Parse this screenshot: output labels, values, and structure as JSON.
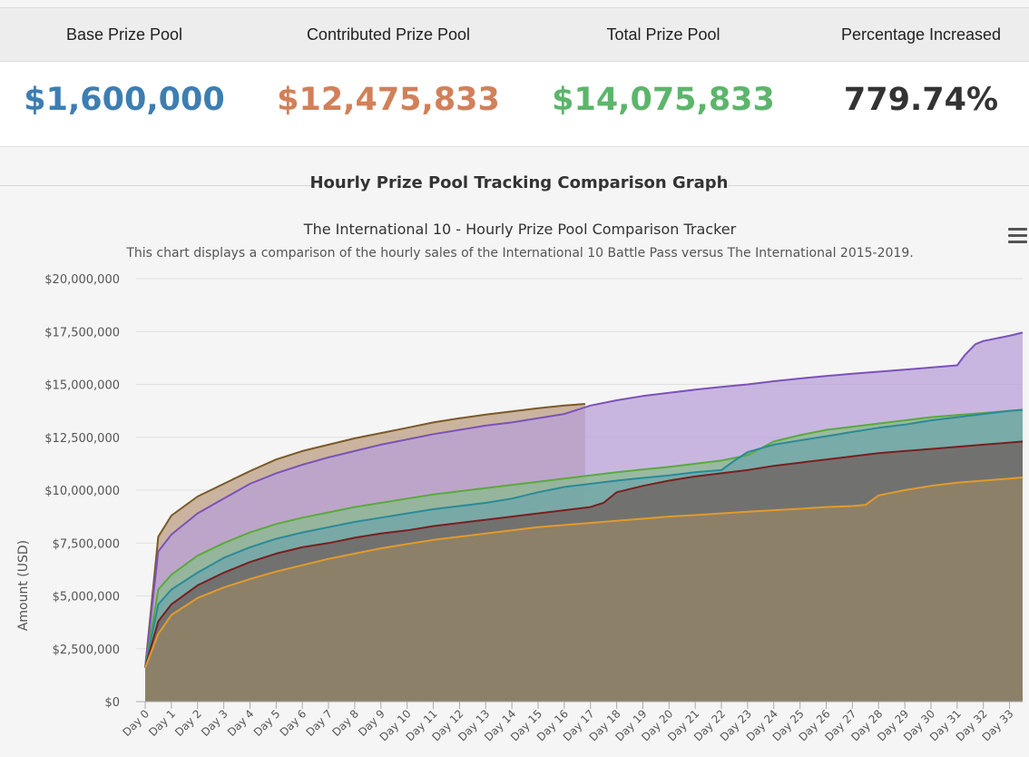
{
  "stats": {
    "labels": [
      "Base Prize Pool",
      "Contributed Prize Pool",
      "Total Prize Pool",
      "Percentage Increased"
    ],
    "values": [
      "$1,600,000",
      "$12,475,833",
      "$14,075,833",
      "779.74%"
    ],
    "colors": [
      "#3d7eb2",
      "#d1805a",
      "#5db56c",
      "#333333"
    ]
  },
  "section": {
    "title": "Hourly Prize Pool Tracking Comparison Graph"
  },
  "menu": {
    "icon": "hamburger-menu-icon"
  },
  "chart_data": {
    "type": "area",
    "title": "The International 10 - Hourly Prize Pool Comparison Tracker",
    "subtitle": "This chart displays a comparison of the hourly sales of the International 10 Battle Pass versus The International 2015-2019.",
    "xlabel": "",
    "ylabel": "Amount (USD)",
    "ylim": [
      0,
      20000000
    ],
    "yticks": [
      0,
      2500000,
      5000000,
      7500000,
      10000000,
      12500000,
      15000000,
      17500000,
      20000000
    ],
    "ytick_labels": [
      "$0",
      "$2,500,000",
      "$5,000,000",
      "$7,500,000",
      "$10,000,000",
      "$12,500,000",
      "$15,000,000",
      "$17,500,000",
      "$20,000,000"
    ],
    "xlim": [
      0,
      33.5
    ],
    "categories": [
      "Day 0",
      "Day 1",
      "Day 2",
      "Day 3",
      "Day 4",
      "Day 5",
      "Day 6",
      "Day 7",
      "Day 8",
      "Day 9",
      "Day 10",
      "Day 11",
      "Day 12",
      "Day 13",
      "Day 14",
      "Day 15",
      "Day 16",
      "Day 17",
      "Day 18",
      "Day 19",
      "Day 20",
      "Day 21",
      "Day 22",
      "Day 23",
      "Day 24",
      "Day 25",
      "Day 26",
      "Day 27",
      "Day 28",
      "Day 29",
      "Day 30",
      "Day 31",
      "Day 32",
      "Day 33"
    ],
    "grid": true,
    "series": [
      {
        "color": "#7a5a28",
        "fill": "#bb9e82",
        "x": [
          0,
          0.5,
          1,
          2,
          3,
          4,
          5,
          6,
          7,
          8,
          9,
          10,
          11,
          12,
          13,
          14,
          15,
          16,
          16.8
        ],
        "values": [
          1600000,
          7800000,
          8800000,
          9700000,
          10300000,
          10900000,
          11450000,
          11850000,
          12150000,
          12450000,
          12700000,
          12950000,
          13200000,
          13400000,
          13570000,
          13720000,
          13870000,
          14000000,
          14075833
        ]
      },
      {
        "color": "#7c52b8",
        "fill": "#b8a0d8",
        "x": [
          0,
          0.5,
          1,
          2,
          3,
          4,
          5,
          6,
          7,
          8,
          9,
          10,
          11,
          12,
          13,
          14,
          15,
          16,
          17,
          18,
          19,
          20,
          21,
          22,
          23,
          24,
          25,
          26,
          27,
          28,
          29,
          30,
          31,
          31.3,
          31.7,
          32,
          33,
          33.5
        ],
        "values": [
          1600000,
          7100000,
          7900000,
          8900000,
          9600000,
          10300000,
          10800000,
          11200000,
          11550000,
          11850000,
          12150000,
          12400000,
          12650000,
          12850000,
          13050000,
          13200000,
          13400000,
          13600000,
          14000000,
          14250000,
          14450000,
          14600000,
          14750000,
          14880000,
          15000000,
          15150000,
          15280000,
          15400000,
          15500000,
          15600000,
          15700000,
          15800000,
          15900000,
          16400000,
          16900000,
          17050000,
          17300000,
          17450000
        ]
      },
      {
        "color": "#5aaa3c",
        "fill": "#89bb8d",
        "x": [
          0,
          0.5,
          1,
          2,
          3,
          4,
          5,
          6,
          7,
          8,
          9,
          10,
          11,
          12,
          13,
          14,
          15,
          16,
          17,
          18,
          19,
          20,
          21,
          22,
          23,
          24,
          25,
          26,
          27,
          28,
          29,
          30,
          31,
          32,
          33,
          33.5
        ],
        "values": [
          1600000,
          5300000,
          6000000,
          6900000,
          7500000,
          8000000,
          8400000,
          8700000,
          8950000,
          9200000,
          9400000,
          9600000,
          9800000,
          9950000,
          10100000,
          10250000,
          10400000,
          10550000,
          10700000,
          10850000,
          10980000,
          11100000,
          11250000,
          11400000,
          11650000,
          12300000,
          12600000,
          12850000,
          13000000,
          13150000,
          13300000,
          13450000,
          13550000,
          13650000,
          13750000,
          13800000
        ]
      },
      {
        "color": "#2a8a99",
        "fill": "#6fa6aa",
        "x": [
          0,
          0.5,
          1,
          2,
          3,
          4,
          5,
          6,
          7,
          8,
          9,
          10,
          11,
          12,
          13,
          14,
          15,
          16,
          17,
          18,
          19,
          20,
          21,
          22,
          22.5,
          23,
          24,
          25,
          26,
          27,
          28,
          29,
          30,
          31,
          32,
          33,
          33.5
        ],
        "values": [
          1600000,
          4600000,
          5300000,
          6100000,
          6800000,
          7300000,
          7700000,
          8000000,
          8250000,
          8500000,
          8700000,
          8900000,
          9100000,
          9250000,
          9400000,
          9600000,
          9900000,
          10150000,
          10300000,
          10450000,
          10580000,
          10700000,
          10850000,
          10950000,
          11400000,
          11800000,
          12150000,
          12350000,
          12550000,
          12750000,
          12950000,
          13100000,
          13300000,
          13450000,
          13600000,
          13750000,
          13800000
        ]
      },
      {
        "color": "#7a1f1f",
        "fill": "#6f5f5d",
        "x": [
          0,
          0.5,
          1,
          2,
          3,
          4,
          5,
          6,
          7,
          8,
          9,
          10,
          11,
          12,
          13,
          14,
          15,
          16,
          17,
          17.5,
          18,
          19,
          20,
          21,
          22,
          23,
          24,
          25,
          26,
          27,
          28,
          29,
          30,
          31,
          32,
          33,
          33.5
        ],
        "values": [
          1600000,
          3800000,
          4600000,
          5500000,
          6100000,
          6600000,
          7000000,
          7300000,
          7500000,
          7750000,
          7950000,
          8100000,
          8300000,
          8450000,
          8600000,
          8750000,
          8900000,
          9050000,
          9200000,
          9400000,
          9900000,
          10200000,
          10450000,
          10650000,
          10800000,
          10950000,
          11150000,
          11300000,
          11450000,
          11600000,
          11750000,
          11850000,
          11950000,
          12050000,
          12150000,
          12250000,
          12300000
        ]
      },
      {
        "color": "#e39a2a",
        "fill": "#968566",
        "x": [
          0,
          0.5,
          1,
          2,
          3,
          4,
          5,
          6,
          7,
          8,
          9,
          10,
          11,
          12,
          13,
          14,
          15,
          16,
          17,
          18,
          19,
          20,
          21,
          22,
          23,
          24,
          25,
          26,
          27,
          27.5,
          28,
          29,
          30,
          31,
          32,
          33,
          33.5
        ],
        "values": [
          1600000,
          3200000,
          4100000,
          4900000,
          5400000,
          5800000,
          6150000,
          6450000,
          6750000,
          7000000,
          7250000,
          7450000,
          7650000,
          7800000,
          7950000,
          8100000,
          8250000,
          8350000,
          8450000,
          8550000,
          8650000,
          8750000,
          8820000,
          8900000,
          8980000,
          9050000,
          9120000,
          9200000,
          9250000,
          9300000,
          9750000,
          10000000,
          10200000,
          10350000,
          10450000,
          10550000,
          10600000
        ]
      }
    ]
  }
}
